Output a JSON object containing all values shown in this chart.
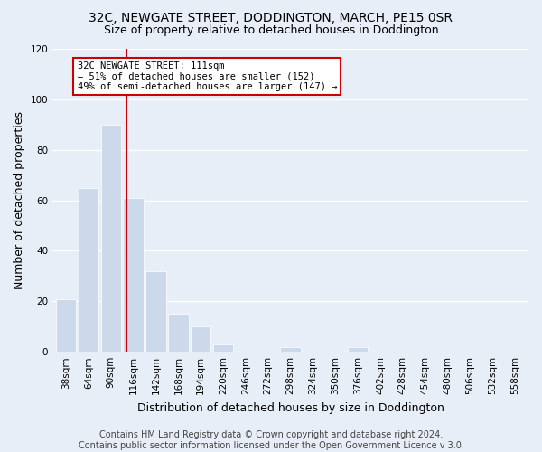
{
  "title1": "32C, NEWGATE STREET, DODDINGTON, MARCH, PE15 0SR",
  "title2": "Size of property relative to detached houses in Doddington",
  "xlabel": "Distribution of detached houses by size in Doddington",
  "ylabel": "Number of detached properties",
  "bar_labels": [
    "38sqm",
    "64sqm",
    "90sqm",
    "116sqm",
    "142sqm",
    "168sqm",
    "194sqm",
    "220sqm",
    "246sqm",
    "272sqm",
    "298sqm",
    "324sqm",
    "350sqm",
    "376sqm",
    "402sqm",
    "428sqm",
    "454sqm",
    "480sqm",
    "506sqm",
    "532sqm",
    "558sqm"
  ],
  "bar_values": [
    21,
    65,
    90,
    61,
    32,
    15,
    10,
    3,
    0,
    0,
    2,
    0,
    0,
    2,
    0,
    0,
    0,
    0,
    0,
    0,
    0
  ],
  "bar_color": "#ccd9ea",
  "grid_color": "#ffffff",
  "bg_color": "#e8eef7",
  "vline_color": "#cc0000",
  "annotation_line1": "32C NEWGATE STREET: 111sqm",
  "annotation_line2": "← 51% of detached houses are smaller (152)",
  "annotation_line3": "49% of semi-detached houses are larger (147) →",
  "annotation_box_color": "#ffffff",
  "annotation_box_edgecolor": "#cc0000",
  "ylim": [
    0,
    120
  ],
  "yticks": [
    0,
    20,
    40,
    60,
    80,
    100,
    120
  ],
  "footer_text": "Contains HM Land Registry data © Crown copyright and database right 2024.\nContains public sector information licensed under the Open Government Licence v 3.0.",
  "title_fontsize": 10,
  "subtitle_fontsize": 9,
  "tick_fontsize": 7.5,
  "label_fontsize": 9,
  "footer_fontsize": 7
}
